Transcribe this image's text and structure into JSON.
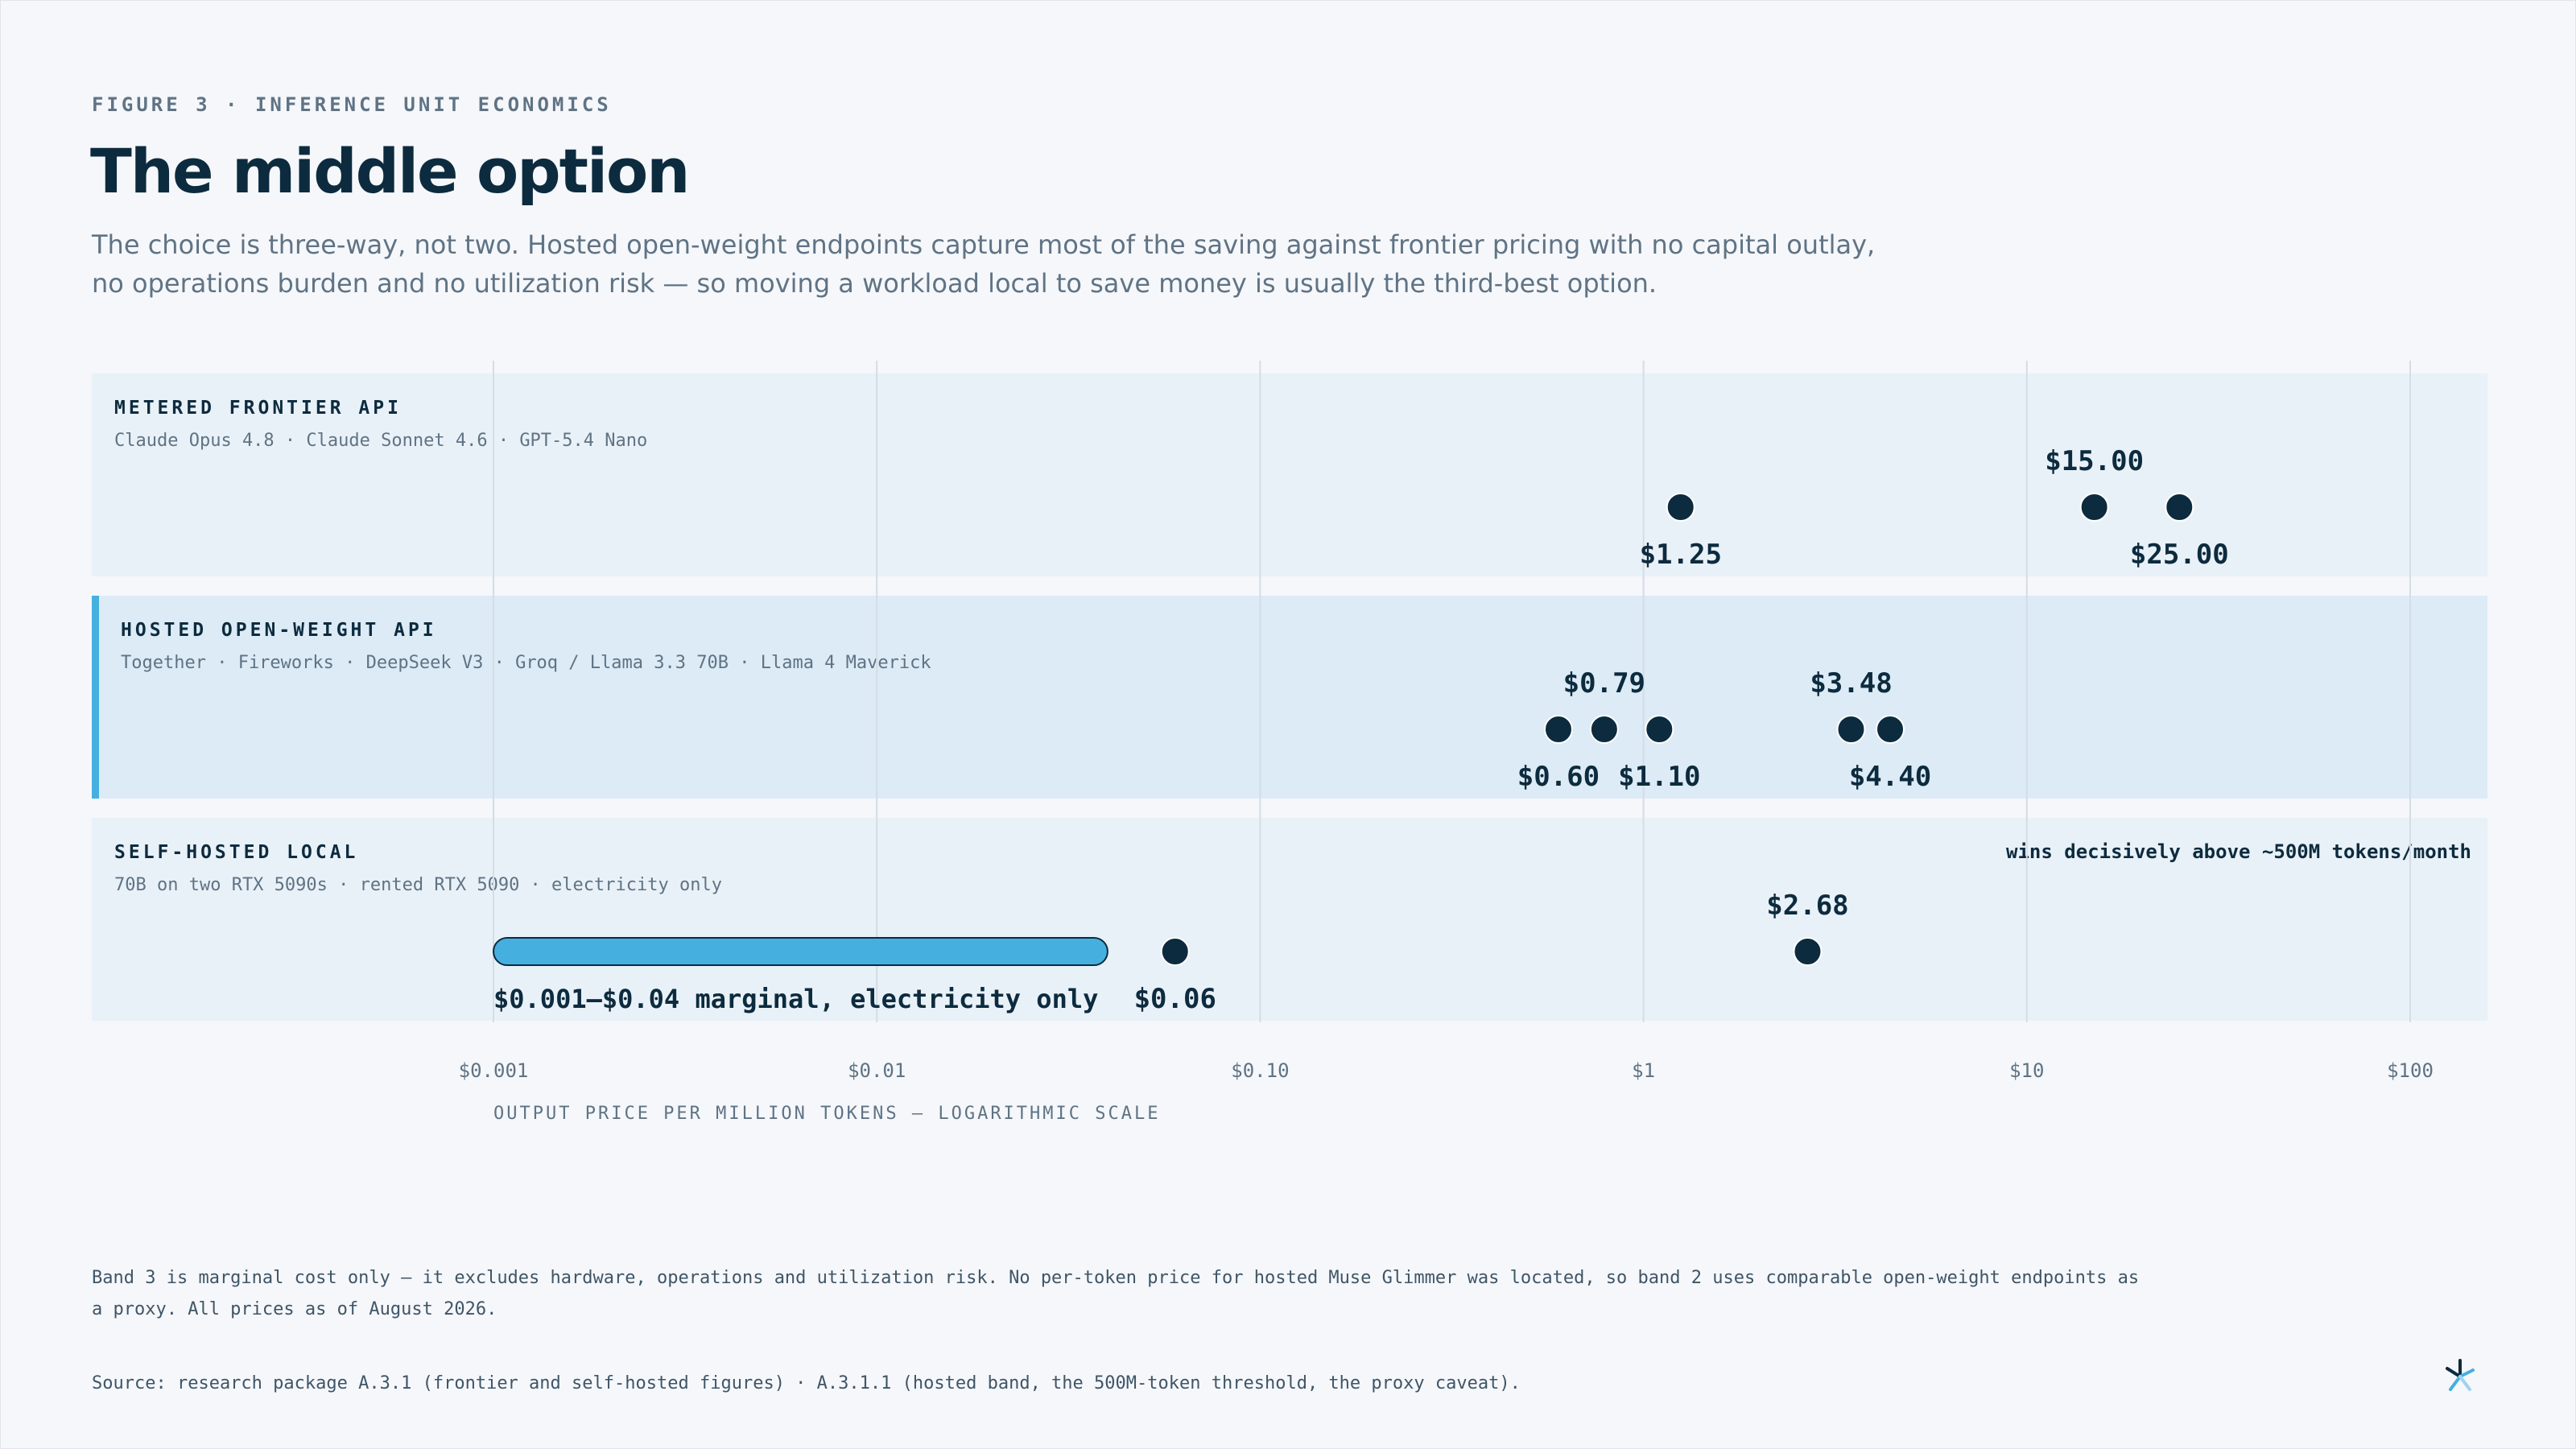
{
  "header": {
    "eyebrow": "FIGURE 3 · INFERENCE UNIT ECONOMICS",
    "title": "The middle option",
    "subtitle": "The choice is three-way, not two. Hosted open-weight endpoints capture most of the saving against frontier pricing with no capital outlay, no operations burden and no utilization risk — so moving a workload local to save money is usually the third-best option."
  },
  "colors": {
    "dot": "#0d2b3e",
    "band_light": "#e9f1f8",
    "band_highlight": "#dcebf6",
    "accent": "#45b0e0",
    "grid": "#d3dde6",
    "muted": "#5f7384"
  },
  "chart_data": {
    "type": "scatter",
    "x_scale": "log",
    "xlim": [
      0.001,
      100
    ],
    "xticks": [
      0.001,
      0.01,
      0.1,
      1,
      10,
      100
    ],
    "xtick_labels": [
      "$0.001",
      "$0.01",
      "$0.10",
      "$1",
      "$10",
      "$100"
    ],
    "xlabel": "OUTPUT PRICE PER MILLION TOKENS — LOGARITHMIC SCALE",
    "grid": true,
    "bands": [
      {
        "name": "METERED FRONTIER API",
        "detail": "Claude Opus 4.8 · Claude Sonnet 4.6 · GPT-5.4 Nano",
        "highlight": false,
        "note": "",
        "points": [
          {
            "x": 1.25,
            "label": "$1.25",
            "label_pos": "below"
          },
          {
            "x": 15.0,
            "label": "$15.00",
            "label_pos": "above"
          },
          {
            "x": 25.0,
            "label": "$25.00",
            "label_pos": "below"
          }
        ],
        "ranges": []
      },
      {
        "name": "HOSTED OPEN-WEIGHT API",
        "detail": "Together · Fireworks · DeepSeek V3 · Groq / Llama 3.3 70B · Llama 4 Maverick",
        "highlight": true,
        "note": "",
        "points": [
          {
            "x": 0.6,
            "label": "$0.60",
            "label_pos": "below"
          },
          {
            "x": 0.79,
            "label": "$0.79",
            "label_pos": "above"
          },
          {
            "x": 1.1,
            "label": "$1.10",
            "label_pos": "below"
          },
          {
            "x": 3.48,
            "label": "$3.48",
            "label_pos": "above"
          },
          {
            "x": 4.4,
            "label": "$4.40",
            "label_pos": "below"
          }
        ],
        "ranges": []
      },
      {
        "name": "SELF-HOSTED LOCAL",
        "detail": "70B on two RTX 5090s · rented RTX 5090 · electricity only",
        "highlight": false,
        "note": "wins decisively above ~500M tokens/month",
        "points": [
          {
            "x": 0.06,
            "label": "$0.06",
            "label_pos": "below"
          },
          {
            "x": 2.68,
            "label": "$2.68",
            "label_pos": "above"
          }
        ],
        "ranges": [
          {
            "from": 0.001,
            "to": 0.04,
            "label": "$0.001–$0.04 marginal, electricity only"
          }
        ]
      }
    ]
  },
  "footer": {
    "footnote": "Band 3 is marginal cost only — it excludes hardware, operations and utilization risk. No per-token price for hosted Muse Glimmer was located, so band 2 uses comparable open-weight endpoints as a proxy. All prices as of August 2026.",
    "source": "Source: research package A.3.1 (frontier and self-hosted figures) · A.3.1.1 (hosted band, the 500M-token threshold, the proxy caveat)."
  },
  "logo_icon": "spark-logo-icon"
}
